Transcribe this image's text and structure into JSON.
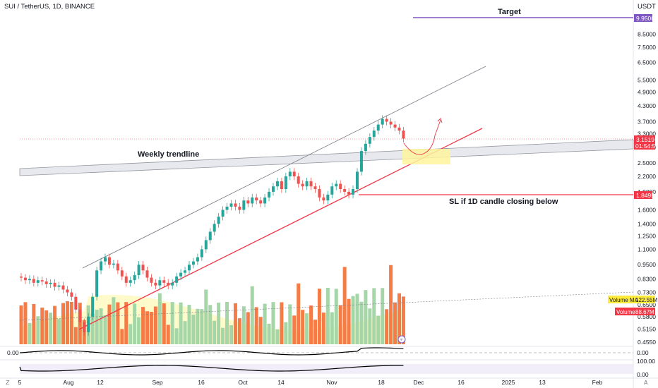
{
  "header": {
    "symbol_title": "SUI / TetherUS, 1D, BINANCE",
    "currency": "USDT"
  },
  "annotations": {
    "target": "Target",
    "weekly_trendline": "Weekly trendline",
    "stop_loss": "SL if 1D candle closing below"
  },
  "price_tags": {
    "target_price": "9.9506",
    "last_price": "3.1519",
    "countdown": "01:54:54",
    "sl_price": "1.8495",
    "volume_ma_label": "Volume MA",
    "volume_ma_value": "122.55M",
    "volume_label": "Volume",
    "volume_value": "88.67M"
  },
  "indicators": {
    "osc1_left": "0.00",
    "osc1_right": "0.00",
    "osc2_right_top": "100.00",
    "osc2_right_bottom": "0.00"
  },
  "colors": {
    "up": "#26a69a",
    "down": "#ef5350",
    "up_volume": "#a5d6a7",
    "down_volume": "#f57c46",
    "target_line": "#7e57c2",
    "support_line": "#f23645",
    "trendline_band": "#d1d4dc",
    "zone": "#fff59d",
    "ma_fill": "#fff9c4"
  },
  "chart_data": {
    "type": "candlestick",
    "title": "SUI / TetherUS, 1D, BINANCE",
    "y_scale": "log",
    "y_ticks": [
      "9.9506",
      "8.5000",
      "7.5000",
      "6.5000",
      "5.5000",
      "4.9000",
      "4.3000",
      "3.7000",
      "3.3000",
      "2.9000",
      "2.5000",
      "2.2000",
      "1.9000",
      "1.6000",
      "1.4000",
      "1.2500",
      "1.1000",
      "0.9500",
      "0.8300",
      "0.7300",
      "0.6500",
      "0.5800",
      "0.5150",
      "0.4550"
    ],
    "x_ticks": [
      "5",
      "Aug",
      "12",
      "Sep",
      "16",
      "Oct",
      "14",
      "Nov",
      "18",
      "Dec",
      "16",
      "2025",
      "13",
      "Feb"
    ],
    "last_price": 3.1519,
    "target": 9.9506,
    "stop_loss": 1.8495,
    "candles_close": [
      0.84,
      0.82,
      0.83,
      0.8,
      0.82,
      0.81,
      0.79,
      0.8,
      0.77,
      0.78,
      0.75,
      0.73,
      0.7,
      0.62,
      0.55,
      0.5,
      0.58,
      0.7,
      0.9,
      0.98,
      1.02,
      0.95,
      0.96,
      0.9,
      0.85,
      0.8,
      0.82,
      0.86,
      0.95,
      0.9,
      0.84,
      0.8,
      0.78,
      0.82,
      0.8,
      0.78,
      0.8,
      0.85,
      0.88,
      0.9,
      0.95,
      0.98,
      1.02,
      1.1,
      1.2,
      1.3,
      1.4,
      1.5,
      1.6,
      1.65,
      1.7,
      1.65,
      1.6,
      1.75,
      1.7,
      1.8,
      1.75,
      1.7,
      1.8,
      1.9,
      2.0,
      2.1,
      1.95,
      2.2,
      2.3,
      2.2,
      2.05,
      2.0,
      2.1,
      2.0,
      1.95,
      1.8,
      1.75,
      1.85,
      2.0,
      2.05,
      1.95,
      1.9,
      1.85,
      1.95,
      2.3,
      2.8,
      3.0,
      3.2,
      3.4,
      3.6,
      3.8,
      3.7,
      3.6,
      3.5,
      3.4,
      3.15
    ],
    "volume_series": {
      "name": "Volume",
      "last": "88.67M",
      "ma_last": "122.55M"
    }
  }
}
